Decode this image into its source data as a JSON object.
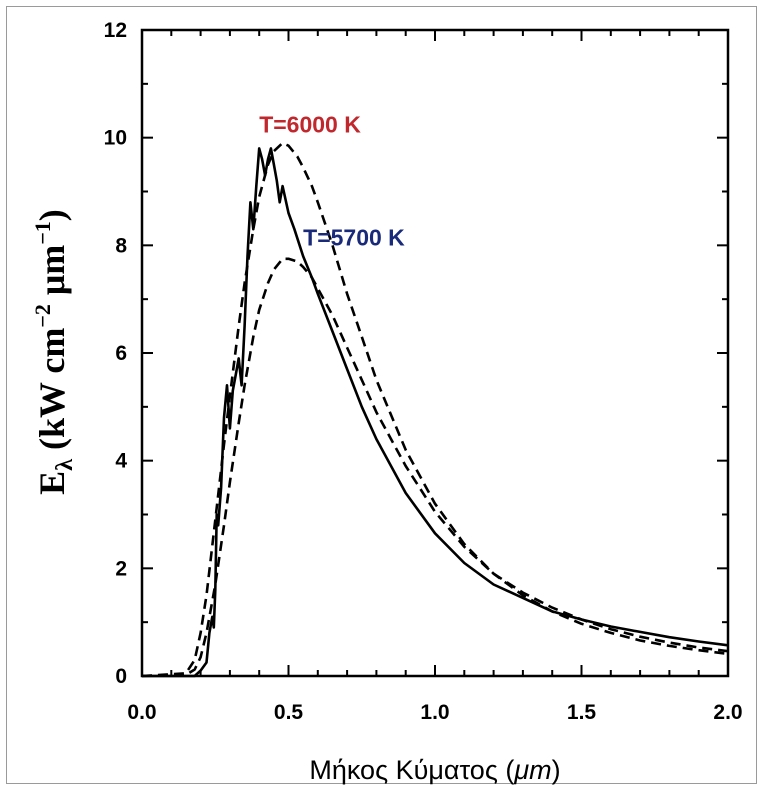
{
  "chart_data": {
    "type": "line",
    "title": "",
    "xlabel": "Μήκος Κύματος (μm)",
    "ylabel": "Eλ (kW cm-2 μm-1)",
    "ylabel_parts": {
      "main": "E",
      "main_sub": "λ",
      "open": " (kW cm",
      "exp1": "−2",
      "mid": " μm",
      "exp2": "−1",
      "close": ")"
    },
    "xlabel_parts": {
      "text": "Μήκος Κύματος (",
      "unit": "μm",
      "close": ")"
    },
    "xlim": [
      0.0,
      2.0
    ],
    "ylim": [
      0,
      12
    ],
    "xticks": [
      "0.0",
      "0.5",
      "1.0",
      "1.5",
      "2.0"
    ],
    "yticks": [
      "0",
      "2",
      "4",
      "6",
      "8",
      "10",
      "12"
    ],
    "grid": false,
    "annotations": [
      {
        "text": "T=6000 K",
        "color": "#c0282d",
        "x": 0.4,
        "y": 10.1
      },
      {
        "text": "T=5700 K",
        "color": "#1a2a7a",
        "x": 0.55,
        "y": 8.0
      }
    ],
    "series": [
      {
        "style": "solid",
        "color": "#000000",
        "x": [
          0.0,
          0.18,
          0.2,
          0.22,
          0.23,
          0.24,
          0.245,
          0.25,
          0.255,
          0.26,
          0.27,
          0.28,
          0.29,
          0.3,
          0.31,
          0.32,
          0.33,
          0.34,
          0.35,
          0.36,
          0.37,
          0.38,
          0.39,
          0.4,
          0.41,
          0.42,
          0.43,
          0.44,
          0.45,
          0.46,
          0.47,
          0.48,
          0.5,
          0.52,
          0.55,
          0.58,
          0.6,
          0.65,
          0.7,
          0.75,
          0.8,
          0.9,
          1.0,
          1.1,
          1.2,
          1.3,
          1.4,
          1.5,
          1.6,
          1.7,
          1.8,
          1.9,
          2.0
        ],
        "y": [
          0,
          0,
          0.1,
          0.25,
          0.8,
          1.1,
          0.9,
          1.6,
          3.0,
          2.8,
          3.5,
          4.8,
          5.4,
          4.6,
          5.3,
          5.6,
          5.9,
          5.4,
          6.5,
          7.8,
          8.8,
          8.3,
          9.1,
          9.8,
          9.6,
          9.3,
          9.6,
          9.8,
          9.5,
          9.2,
          8.8,
          9.1,
          8.6,
          8.3,
          7.8,
          7.4,
          7.1,
          6.4,
          5.7,
          5.0,
          4.4,
          3.4,
          2.65,
          2.1,
          1.7,
          1.45,
          1.2,
          1.05,
          0.92,
          0.82,
          0.72,
          0.64,
          0.57
        ]
      },
      {
        "style": "dashed",
        "color": "#000000",
        "name": "T=6000 K",
        "x": [
          0.0,
          0.15,
          0.18,
          0.2,
          0.22,
          0.25,
          0.28,
          0.3,
          0.33,
          0.35,
          0.38,
          0.4,
          0.43,
          0.45,
          0.48,
          0.5,
          0.53,
          0.55,
          0.58,
          0.6,
          0.65,
          0.7,
          0.75,
          0.8,
          0.9,
          1.0,
          1.1,
          1.2,
          1.3,
          1.4,
          1.5,
          1.6,
          1.7,
          1.8,
          1.9,
          2.0
        ],
        "y": [
          0,
          0.05,
          0.3,
          0.8,
          1.5,
          2.9,
          4.3,
          5.2,
          6.5,
          7.3,
          8.3,
          8.9,
          9.5,
          9.75,
          9.9,
          9.85,
          9.65,
          9.45,
          9.1,
          8.8,
          8.0,
          7.1,
          6.3,
          5.5,
          4.2,
          3.2,
          2.45,
          1.9,
          1.5,
          1.2,
          0.97,
          0.8,
          0.66,
          0.56,
          0.48,
          0.41
        ]
      },
      {
        "style": "dashed",
        "color": "#000000",
        "name": "T=5700 K",
        "x": [
          0.0,
          0.15,
          0.18,
          0.2,
          0.22,
          0.25,
          0.28,
          0.3,
          0.33,
          0.35,
          0.38,
          0.4,
          0.43,
          0.45,
          0.48,
          0.5,
          0.53,
          0.55,
          0.58,
          0.6,
          0.65,
          0.7,
          0.75,
          0.8,
          0.9,
          1.0,
          1.1,
          1.2,
          1.3,
          1.4,
          1.5,
          1.6,
          1.7,
          1.8,
          1.9,
          2.0
        ],
        "y": [
          0,
          0.02,
          0.12,
          0.35,
          0.8,
          1.7,
          2.8,
          3.6,
          4.7,
          5.4,
          6.3,
          6.8,
          7.3,
          7.55,
          7.75,
          7.75,
          7.7,
          7.6,
          7.4,
          7.2,
          6.7,
          6.1,
          5.5,
          4.9,
          3.9,
          3.05,
          2.4,
          1.9,
          1.55,
          1.27,
          1.05,
          0.87,
          0.73,
          0.62,
          0.53,
          0.46
        ]
      }
    ]
  }
}
